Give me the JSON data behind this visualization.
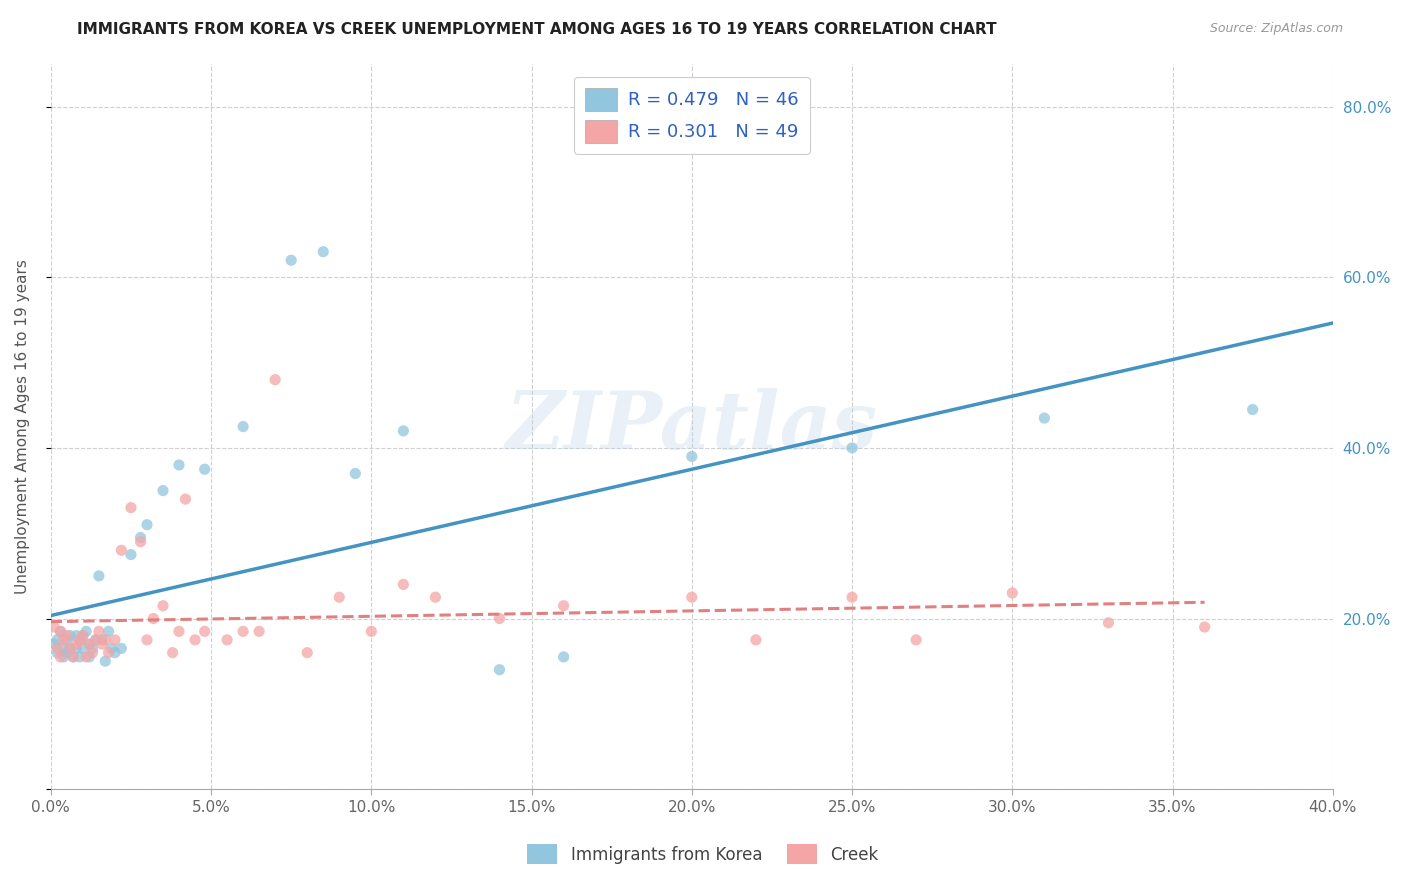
{
  "title": "IMMIGRANTS FROM KOREA VS CREEK UNEMPLOYMENT AMONG AGES 16 TO 19 YEARS CORRELATION CHART",
  "source": "Source: ZipAtlas.com",
  "ylabel": "Unemployment Among Ages 16 to 19 years",
  "xlim": [
    0.0,
    0.4
  ],
  "ylim": [
    0.0,
    0.85
  ],
  "x_ticks": [
    0.0,
    0.05,
    0.1,
    0.15,
    0.2,
    0.25,
    0.3,
    0.35,
    0.4
  ],
  "y_ticks_right": [
    0.2,
    0.4,
    0.6,
    0.8
  ],
  "background_color": "#ffffff",
  "grid_color": "#d0d0d0",
  "blue_color": "#92c5de",
  "pink_color": "#f4a5a5",
  "blue_line_color": "#4393c3",
  "pink_line_color": "#e08080",
  "legend_blue_label": "R = 0.479   N = 46",
  "legend_pink_label": "R = 0.301   N = 49",
  "watermark": "ZIPatlas",
  "korea_x": [
    0.001,
    0.002,
    0.002,
    0.003,
    0.004,
    0.004,
    0.005,
    0.005,
    0.006,
    0.006,
    0.007,
    0.008,
    0.008,
    0.009,
    0.009,
    0.01,
    0.01,
    0.011,
    0.012,
    0.012,
    0.013,
    0.014,
    0.015,
    0.016,
    0.017,
    0.018,
    0.019,
    0.02,
    0.022,
    0.025,
    0.028,
    0.03,
    0.035,
    0.04,
    0.048,
    0.06,
    0.075,
    0.085,
    0.095,
    0.11,
    0.14,
    0.16,
    0.2,
    0.25,
    0.31,
    0.375
  ],
  "korea_y": [
    0.17,
    0.175,
    0.16,
    0.185,
    0.165,
    0.155,
    0.175,
    0.16,
    0.18,
    0.165,
    0.155,
    0.165,
    0.18,
    0.175,
    0.155,
    0.18,
    0.165,
    0.185,
    0.155,
    0.17,
    0.165,
    0.175,
    0.25,
    0.175,
    0.15,
    0.185,
    0.165,
    0.16,
    0.165,
    0.275,
    0.295,
    0.31,
    0.35,
    0.38,
    0.375,
    0.425,
    0.62,
    0.63,
    0.37,
    0.42,
    0.14,
    0.155,
    0.39,
    0.4,
    0.435,
    0.445
  ],
  "creek_x": [
    0.001,
    0.002,
    0.003,
    0.003,
    0.004,
    0.005,
    0.006,
    0.007,
    0.008,
    0.009,
    0.01,
    0.011,
    0.012,
    0.013,
    0.014,
    0.015,
    0.016,
    0.017,
    0.018,
    0.02,
    0.022,
    0.025,
    0.028,
    0.03,
    0.032,
    0.035,
    0.038,
    0.04,
    0.042,
    0.045,
    0.048,
    0.055,
    0.06,
    0.065,
    0.07,
    0.08,
    0.09,
    0.1,
    0.11,
    0.12,
    0.14,
    0.16,
    0.2,
    0.22,
    0.25,
    0.27,
    0.3,
    0.33,
    0.36
  ],
  "creek_y": [
    0.19,
    0.165,
    0.155,
    0.185,
    0.175,
    0.18,
    0.165,
    0.155,
    0.17,
    0.175,
    0.18,
    0.155,
    0.17,
    0.16,
    0.175,
    0.185,
    0.17,
    0.175,
    0.16,
    0.175,
    0.28,
    0.33,
    0.29,
    0.175,
    0.2,
    0.215,
    0.16,
    0.185,
    0.34,
    0.175,
    0.185,
    0.175,
    0.185,
    0.185,
    0.48,
    0.16,
    0.225,
    0.185,
    0.24,
    0.225,
    0.2,
    0.215,
    0.225,
    0.175,
    0.225,
    0.175,
    0.23,
    0.195,
    0.19
  ],
  "bottom_legend_labels": [
    "Immigrants from Korea",
    "Creek"
  ]
}
